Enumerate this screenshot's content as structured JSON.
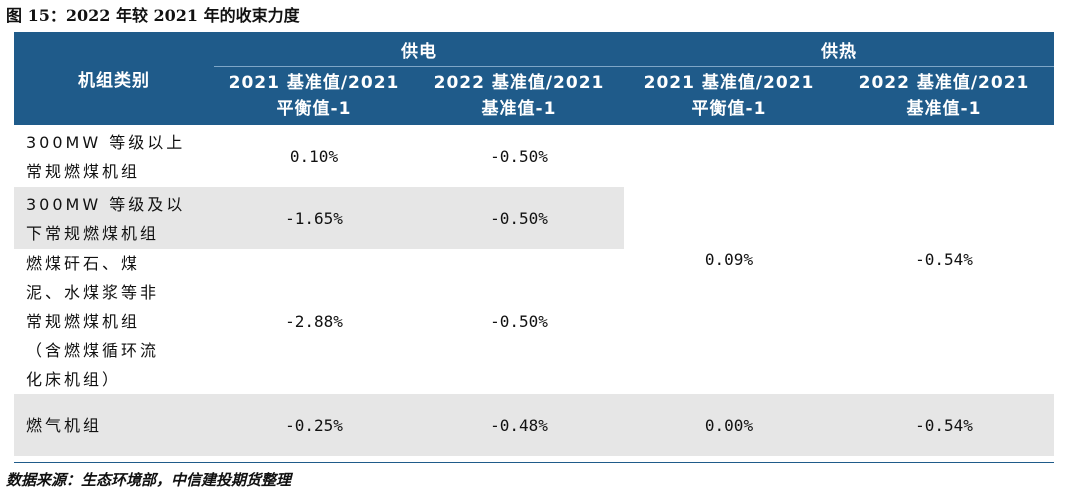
{
  "figure_title": "图 15：2022 年较 2021 年的收束力度",
  "table": {
    "header": {
      "category_label": "机组类别",
      "groups": [
        "供电",
        "供热"
      ],
      "subheaders": [
        {
          "line1": "2021 基准值/2021",
          "line2": "平衡值-1"
        },
        {
          "line1": "2022 基准值/2021",
          "line2": "基准值-1"
        },
        {
          "line1": "2021 基准值/2021",
          "line2": "平衡值-1"
        },
        {
          "line1": "2022 基准值/2021",
          "line2": "基准值-1"
        }
      ]
    },
    "rows": [
      {
        "category": [
          "300MW 等级以上",
          "常规燃煤机组"
        ],
        "supply_2021": "0.10%",
        "supply_2022": "-0.50%"
      },
      {
        "category": [
          "300MW 等级及以",
          "下常规燃煤机组"
        ],
        "supply_2021": "-1.65%",
        "supply_2022": "-0.50%"
      },
      {
        "category": [
          "燃煤矸石、煤",
          "泥、水煤浆等非",
          "常规燃煤机组",
          "（含燃煤循环流",
          "化床机组）"
        ],
        "supply_2021": "-2.88%",
        "supply_2022": "-0.50%"
      },
      {
        "category": [
          "燃气机组"
        ],
        "supply_2021": "-0.25%",
        "supply_2022": "-0.48%",
        "heat_2021": "0.00%",
        "heat_2022": "-0.54%"
      }
    ],
    "merged_coal_heat": {
      "heat_2021": "0.09%",
      "heat_2022": "-0.54%"
    }
  },
  "source": "数据来源：生态环境部，中信建投期货整理"
}
